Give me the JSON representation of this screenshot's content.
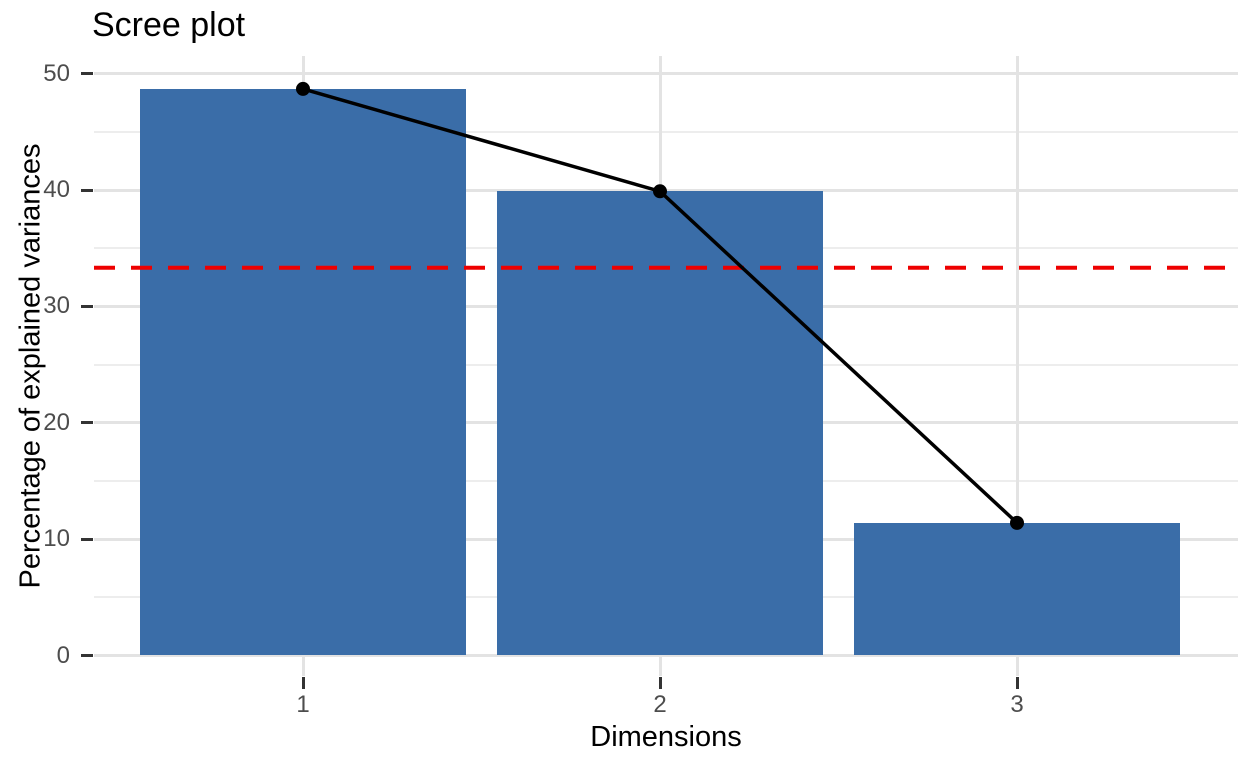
{
  "chart_data": {
    "type": "bar",
    "title": "Scree plot",
    "xlabel": "Dimensions",
    "ylabel": "Percentage of explained variances",
    "categories": [
      "1",
      "2",
      "3"
    ],
    "values": [
      48.7,
      39.9,
      11.4
    ],
    "overlay_line": {
      "description": "black connected line with points on top of each bar",
      "values": [
        48.7,
        39.9,
        11.4
      ]
    },
    "reference_line": {
      "value": 33.33,
      "style": "dashed",
      "color": "#ee0000"
    },
    "yticks": [
      0,
      10,
      20,
      30,
      40,
      50
    ],
    "yticks_minor": [
      5,
      15,
      25,
      35,
      45
    ],
    "ylim": [
      0,
      51.5
    ],
    "grid": true,
    "legend": "none",
    "colors": {
      "bar": "#3a6da8",
      "line": "#000000",
      "point": "#000000",
      "grid_major": "#e3e3e3",
      "grid_minor": "#ededed",
      "axis_tick": "#333333",
      "tick_label": "#4d4d4d",
      "title": "#000000",
      "background": "#ffffff"
    }
  }
}
